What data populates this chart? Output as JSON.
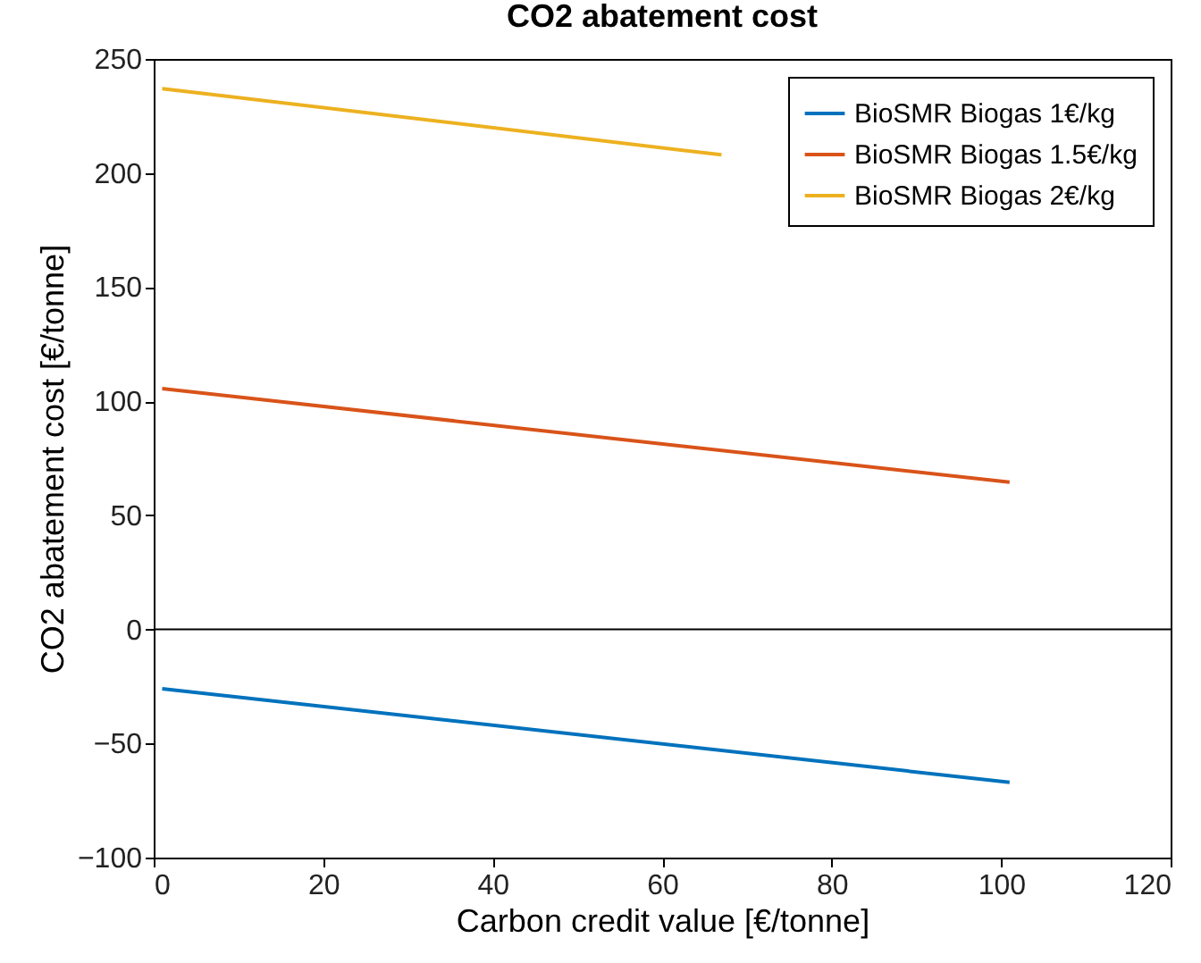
{
  "chart_data": {
    "type": "line",
    "title": "CO2 abatement cost",
    "xlabel": "Carbon credit value [€/tonne]",
    "ylabel": "CO2 abatement cost [€/tonne]",
    "xlim": [
      0,
      120
    ],
    "ylim": [
      -100,
      250
    ],
    "xticks": [
      0,
      20,
      40,
      60,
      80,
      100,
      120
    ],
    "yticks": [
      -100,
      -50,
      0,
      50,
      100,
      150,
      200,
      250
    ],
    "legend": "top right",
    "ref_lines": [
      {
        "axis": "y",
        "value": 0,
        "color": "#000000"
      }
    ],
    "series": [
      {
        "name": "BioSMR Biogas 1€/kg",
        "color": "#0072bd",
        "x": [
          1,
          101
        ],
        "values": [
          -26,
          -67
        ]
      },
      {
        "name": "BioSMR Biogas 1.5€/kg",
        "color": "#d95319",
        "x": [
          1,
          101
        ],
        "values": [
          105.5,
          64.5
        ]
      },
      {
        "name": "BioSMR Biogas 2€/kg",
        "color": "#edb120",
        "x": [
          1,
          67
        ],
        "values": [
          237,
          208
        ]
      }
    ]
  }
}
